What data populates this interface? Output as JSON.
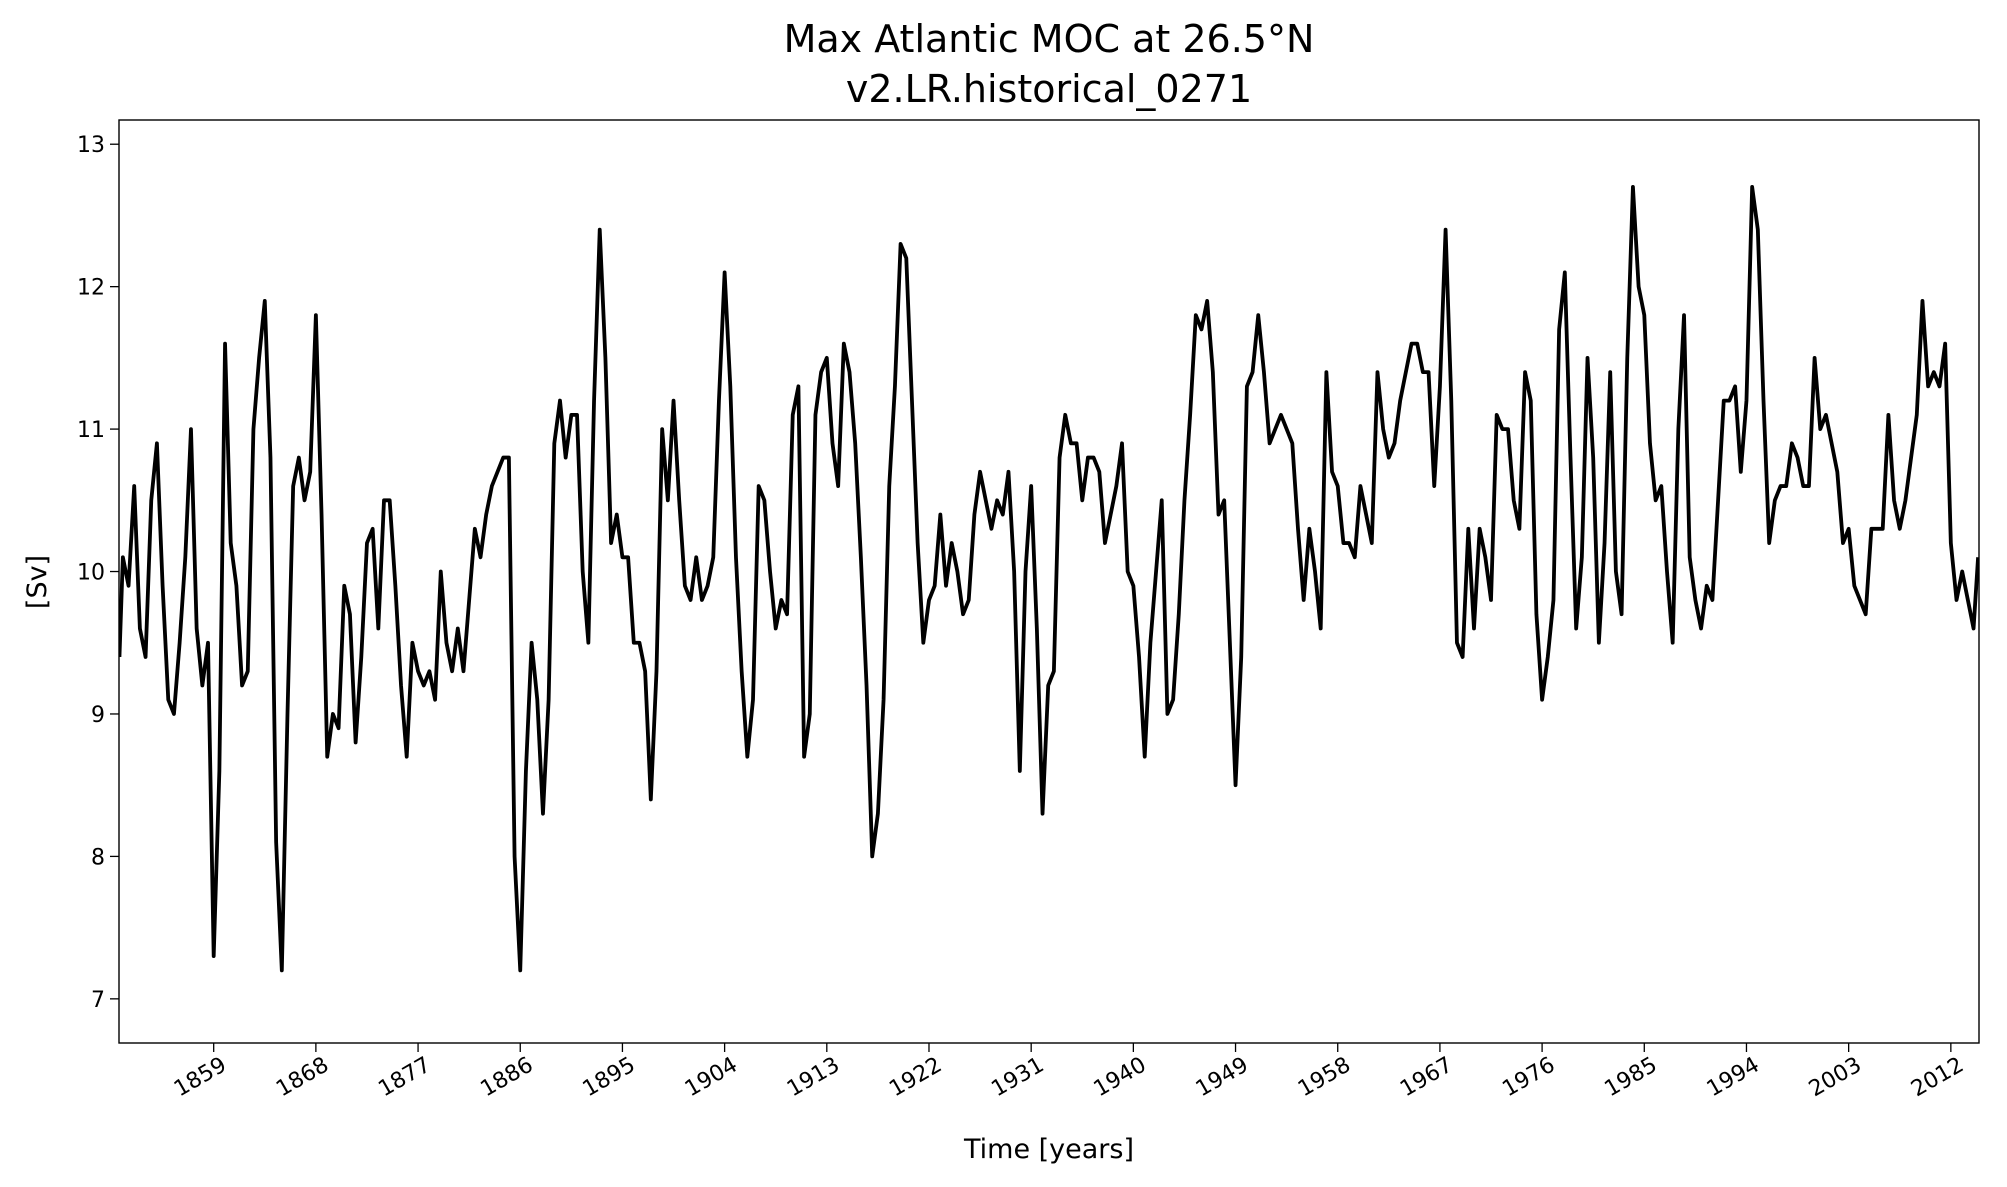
{
  "chart_data": {
    "type": "line",
    "title": "Max Atlantic MOC at 26.5°N",
    "subtitle": "v2.LR.historical_0271",
    "xlabel": "Time [years]",
    "ylabel": "[Sv]",
    "color": "#000000",
    "xlim": [
      1850.66,
      2014.48
    ],
    "ylim": [
      6.69,
      13.17
    ],
    "xticks": [
      1859,
      1868,
      1877,
      1886,
      1895,
      1904,
      1913,
      1922,
      1931,
      1940,
      1949,
      1958,
      1967,
      1976,
      1985,
      1994,
      2003,
      2012
    ],
    "yticks": [
      7,
      8,
      9,
      10,
      11,
      12,
      13
    ],
    "grid": false,
    "x": [
      1850.7,
      1851,
      1851.5,
      1852,
      1852.5,
      1853,
      1853.5,
      1854,
      1854.5,
      1855,
      1855.5,
      1856,
      1856.5,
      1857,
      1857.5,
      1858,
      1858.5,
      1859,
      1859.5,
      1860,
      1860.5,
      1861,
      1861.5,
      1862,
      1862.5,
      1863,
      1863.5,
      1864,
      1864.5,
      1865,
      1865.5,
      1866,
      1866.5,
      1867,
      1867.5,
      1868,
      1868.5,
      1869,
      1869.5,
      1870,
      1870.5,
      1871,
      1871.5,
      1872,
      1872.5,
      1873,
      1873.5,
      1874,
      1874.5,
      1875,
      1875.5,
      1876,
      1876.5,
      1877,
      1877.5,
      1878,
      1878.5,
      1879,
      1879.5,
      1880,
      1880.5,
      1881,
      1881.5,
      1882,
      1882.5,
      1883,
      1883.5,
      1884,
      1884.5,
      1885,
      1885.5,
      1886,
      1886.5,
      1887,
      1887.5,
      1888,
      1888.5,
      1889,
      1889.5,
      1890,
      1890.5,
      1891,
      1891.5,
      1892,
      1892.5,
      1893,
      1893.5,
      1894,
      1894.5,
      1895,
      1895.5,
      1896,
      1896.5,
      1897,
      1897.5,
      1898,
      1898.5,
      1899,
      1899.5,
      1900,
      1900.5,
      1901,
      1901.5,
      1902,
      1902.5,
      1903,
      1903.5,
      1904,
      1904.5,
      1905,
      1905.5,
      1906,
      1906.5,
      1907,
      1907.5,
      1908,
      1908.5,
      1909,
      1909.5,
      1910,
      1910.5,
      1911,
      1911.5,
      1912,
      1912.5,
      1913,
      1913.5,
      1914,
      1914.5,
      1915,
      1915.5,
      1916,
      1916.5,
      1917,
      1917.5,
      1918,
      1918.5,
      1919,
      1919.5,
      1920,
      1920.5,
      1921,
      1921.5,
      1922,
      1922.5,
      1923,
      1923.5,
      1924,
      1924.5,
      1925,
      1925.5,
      1926,
      1926.5,
      1927,
      1927.5,
      1928,
      1928.5,
      1929,
      1929.5,
      1930,
      1930.5,
      1931,
      1931.5,
      1932,
      1932.5,
      1933,
      1933.5,
      1934,
      1934.5,
      1935,
      1935.5,
      1936,
      1936.5,
      1937,
      1937.5,
      1938,
      1938.5,
      1939,
      1939.5,
      1940,
      1940.5,
      1941,
      1941.5,
      1942,
      1942.5,
      1943,
      1943.5,
      1944,
      1944.5,
      1945,
      1945.5,
      1946,
      1946.5,
      1947,
      1947.5,
      1948,
      1948.5,
      1949,
      1949.5,
      1950,
      1950.5,
      1951,
      1951.5,
      1952,
      1952.5,
      1953,
      1953.5,
      1954,
      1954.5,
      1955,
      1955.5,
      1956,
      1956.5,
      1957,
      1957.5,
      1958,
      1958.5,
      1959,
      1959.5,
      1960,
      1960.5,
      1961,
      1961.5,
      1962,
      1962.5,
      1963,
      1963.5,
      1964,
      1964.5,
      1965,
      1965.5,
      1966,
      1966.5,
      1967,
      1967.5,
      1968,
      1968.5,
      1969,
      1969.5,
      1970,
      1970.5,
      1971,
      1971.5,
      1972,
      1972.5,
      1973,
      1973.5,
      1974,
      1974.5,
      1975,
      1975.5,
      1976,
      1976.5,
      1977,
      1977.5,
      1978,
      1978.5,
      1979,
      1979.5,
      1980,
      1980.5,
      1981,
      1981.5,
      1982,
      1982.5,
      1983,
      1983.5,
      1984,
      1984.5,
      1985,
      1985.5,
      1986,
      1986.5,
      1987,
      1987.5,
      1988,
      1988.5,
      1989,
      1989.5,
      1990,
      1990.5,
      1991,
      1991.5,
      1992,
      1992.5,
      1993,
      1993.5,
      1994,
      1994.5,
      1995,
      1995.5,
      1996,
      1996.5,
      1997,
      1997.5,
      1998,
      1998.5,
      1999,
      1999.5,
      2000,
      2000.5,
      2001,
      2001.5,
      2002,
      2002.5,
      2003,
      2003.5,
      2004,
      2004.5,
      2005,
      2005.5,
      2006,
      2006.5,
      2007,
      2007.5,
      2008,
      2008.5,
      2009,
      2009.5,
      2010,
      2010.5,
      2011,
      2011.5,
      2012,
      2012.5,
      2013,
      2013.5,
      2014,
      2014.4
    ],
    "values": [
      9.4,
      10.1,
      9.9,
      10.6,
      9.6,
      9.4,
      10.5,
      10.9,
      9.9,
      9.1,
      9.0,
      9.5,
      10.1,
      11.0,
      9.6,
      9.2,
      9.5,
      7.3,
      8.6,
      11.6,
      10.2,
      9.9,
      9.2,
      9.3,
      11.0,
      11.5,
      11.9,
      10.8,
      8.1,
      7.2,
      9.0,
      10.6,
      10.8,
      10.5,
      10.7,
      11.8,
      10.4,
      8.7,
      9.0,
      8.9,
      9.9,
      9.7,
      8.8,
      9.4,
      10.2,
      10.3,
      9.6,
      10.5,
      10.5,
      9.9,
      9.2,
      8.7,
      9.5,
      9.3,
      9.2,
      9.3,
      9.1,
      10.0,
      9.5,
      9.3,
      9.6,
      9.3,
      9.8,
      10.3,
      10.1,
      10.4,
      10.6,
      10.7,
      10.8,
      10.8,
      8.0,
      7.2,
      8.6,
      9.5,
      9.1,
      8.3,
      9.1,
      10.9,
      11.2,
      10.8,
      11.1,
      11.1,
      10.0,
      9.5,
      11.2,
      12.4,
      11.5,
      10.2,
      10.4,
      10.1,
      10.1,
      9.5,
      9.5,
      9.3,
      8.4,
      9.3,
      11.0,
      10.5,
      11.2,
      10.5,
      9.9,
      9.8,
      10.1,
      9.8,
      9.9,
      10.1,
      11.2,
      12.1,
      11.3,
      10.1,
      9.3,
      8.7,
      9.1,
      10.6,
      10.5,
      10.0,
      9.6,
      9.8,
      9.7,
      11.1,
      11.3,
      8.7,
      9.0,
      11.1,
      11.4,
      11.5,
      10.9,
      10.6,
      11.6,
      11.4,
      10.9,
      10.1,
      9.2,
      8.0,
      8.3,
      9.1,
      10.6,
      11.3,
      12.3,
      12.2,
      11.2,
      10.2,
      9.5,
      9.8,
      9.9,
      10.4,
      9.9,
      10.2,
      10.0,
      9.7,
      9.8,
      10.4,
      10.7,
      10.5,
      10.3,
      10.5,
      10.4,
      10.7,
      10.0,
      8.6,
      10.0,
      10.6,
      9.6,
      8.3,
      9.2,
      9.3,
      10.8,
      11.1,
      10.9,
      10.9,
      10.5,
      10.8,
      10.8,
      10.7,
      10.2,
      10.4,
      10.6,
      10.9,
      10.0,
      9.9,
      9.4,
      8.7,
      9.5,
      10.0,
      10.5,
      9.0,
      9.1,
      9.7,
      10.5,
      11.1,
      11.8,
      11.7,
      11.9,
      11.4,
      10.4,
      10.5,
      9.5,
      8.5,
      9.4,
      11.3,
      11.4,
      11.8,
      11.4,
      10.9,
      11.0,
      11.1,
      11.0,
      10.9,
      10.3,
      9.8,
      10.3,
      10.0,
      9.6,
      11.4,
      10.7,
      10.6,
      10.2,
      10.2,
      10.1,
      10.6,
      10.4,
      10.2,
      11.4,
      11.0,
      10.8,
      10.9,
      11.2,
      11.4,
      11.6,
      11.6,
      11.4,
      11.4,
      10.6,
      11.3,
      12.4,
      11.2,
      9.5,
      9.4,
      10.3,
      9.6,
      10.3,
      10.1,
      9.8,
      11.1,
      11.0,
      11.0,
      10.5,
      10.3,
      11.4,
      11.2,
      9.7,
      9.1,
      9.4,
      9.8,
      11.7,
      12.1,
      10.8,
      9.6,
      10.1,
      11.5,
      10.8,
      9.5,
      10.2,
      11.4,
      10.0,
      9.7,
      11.5,
      12.7,
      12.0,
      11.8,
      10.9,
      10.5,
      10.6,
      10.0,
      9.5,
      11.0,
      11.8,
      10.1,
      9.8,
      9.6,
      9.9,
      9.8,
      10.5,
      11.2,
      11.2,
      11.3,
      10.7,
      11.2,
      12.7,
      12.4,
      11.2,
      10.2,
      10.5,
      10.6,
      10.6,
      10.9,
      10.8,
      10.6,
      10.6,
      11.5,
      11.0,
      11.1,
      10.9,
      10.7,
      10.2,
      10.3,
      9.9,
      9.8,
      9.7,
      10.3,
      10.3,
      10.3,
      11.1,
      10.5,
      10.3,
      10.5,
      10.8,
      11.1,
      11.9,
      11.3,
      11.4,
      11.3,
      11.6,
      10.2,
      9.8,
      10.0,
      9.8,
      9.6,
      10.1
    ]
  }
}
